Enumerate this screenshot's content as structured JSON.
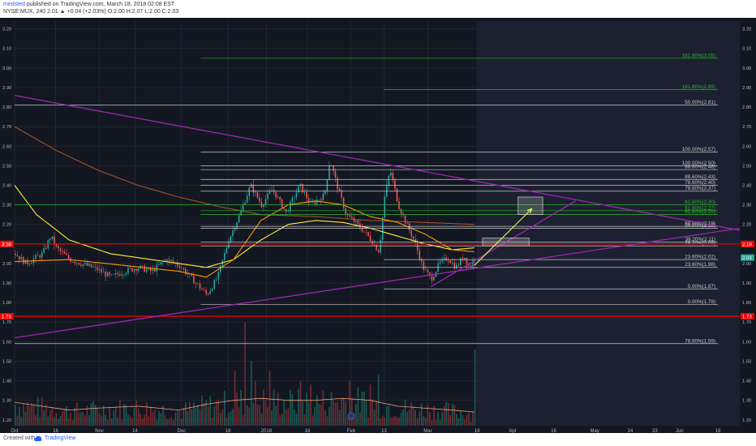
{
  "header": {
    "author": "medsted",
    "published_text": "published on TradingView.com, March 18, 2018 02:08 EST",
    "symbol_line": "NYSE:MUX, 240  2.01  ▲ +0.04 (+2.03%)  O:2.00  H:2.07  L:2.00  C:2.03"
  },
  "footer": {
    "created_with": "Created with",
    "brand": "TradingView",
    "logo_icon": "tradingview-cloud-icon"
  },
  "colors": {
    "background": "#131722",
    "grid": "#2a2e39",
    "up": "#26a69a",
    "down": "#ef5350",
    "fib_gray": "#c8c8c8",
    "fib_green": "#2db52d",
    "trendline": "#9c27b0",
    "sma_yellow": "#ffeb3b",
    "sma_orange": "#ff9800",
    "sma_brown": "#a0522d",
    "horizontal_red": "#ff0000",
    "projection_arrow": "#e6ff3c"
  },
  "chart_data": {
    "type": "candlestick",
    "symbol": "NYSE:MUX",
    "interval": "240",
    "ylim": [
      1.17,
      3.24
    ],
    "y_ticks": [
      "3.20",
      "3.10",
      "3.00",
      "2.90",
      "2.80",
      "2.70",
      "2.60",
      "2.50",
      "2.40",
      "2.30",
      "2.20",
      "2.10",
      "2.00",
      "1.90",
      "1.80",
      "1.70",
      "1.60",
      "1.50",
      "1.40",
      "1.30",
      "1.20"
    ],
    "x_ticks": [
      {
        "label": "Oct",
        "t": 0
      },
      {
        "label": "16",
        "t": 15
      },
      {
        "label": "Nov",
        "t": 31
      },
      {
        "label": "14",
        "t": 44
      },
      {
        "label": "Dec",
        "t": 61
      },
      {
        "label": "18",
        "t": 78
      },
      {
        "label": "2018",
        "t": 92
      },
      {
        "label": "16",
        "t": 107
      },
      {
        "label": "Feb",
        "t": 123
      },
      {
        "label": "13",
        "t": 135
      },
      {
        "label": "Mar",
        "t": 151
      },
      {
        "label": "19",
        "t": 169
      },
      {
        "label": "Apr",
        "t": 182
      },
      {
        "label": "16",
        "t": 197
      },
      {
        "label": "May",
        "t": 212
      },
      {
        "label": "14",
        "t": 225
      },
      {
        "label": "23",
        "t": 234
      },
      {
        "label": "Jun",
        "t": 243
      },
      {
        "label": "18",
        "t": 257
      }
    ],
    "price_anchors": [
      [
        0,
        2.05
      ],
      [
        4,
        2.0
      ],
      [
        10,
        2.05
      ],
      [
        13,
        2.14
      ],
      [
        15,
        2.08
      ],
      [
        20,
        2.02
      ],
      [
        26,
        1.99
      ],
      [
        30,
        1.97
      ],
      [
        35,
        1.93
      ],
      [
        40,
        1.96
      ],
      [
        45,
        1.98
      ],
      [
        50,
        1.96
      ],
      [
        55,
        2.02
      ],
      [
        60,
        1.99
      ],
      [
        66,
        1.9
      ],
      [
        70,
        1.84
      ],
      [
        74,
        1.93
      ],
      [
        78,
        2.12
      ],
      [
        82,
        2.25
      ],
      [
        86,
        2.4
      ],
      [
        90,
        2.3
      ],
      [
        94,
        2.38
      ],
      [
        99,
        2.26
      ],
      [
        104,
        2.4
      ],
      [
        108,
        2.3
      ],
      [
        113,
        2.35
      ],
      [
        115,
        2.53
      ],
      [
        118,
        2.38
      ],
      [
        121,
        2.25
      ],
      [
        125,
        2.2
      ],
      [
        129,
        2.14
      ],
      [
        133,
        2.06
      ],
      [
        135,
        2.34
      ],
      [
        137,
        2.48
      ],
      [
        140,
        2.3
      ],
      [
        143,
        2.2
      ],
      [
        146,
        2.11
      ],
      [
        149,
        1.98
      ],
      [
        152,
        1.92
      ],
      [
        155,
        2.0
      ],
      [
        158,
        2.03
      ],
      [
        161,
        1.98
      ],
      [
        164,
        2.04
      ],
      [
        166,
        1.98
      ],
      [
        168,
        2.03
      ]
    ],
    "sma_50_anchors": [
      [
        0,
        2.01
      ],
      [
        20,
        2.02
      ],
      [
        40,
        1.99
      ],
      [
        60,
        1.96
      ],
      [
        70,
        1.93
      ],
      [
        80,
        2.02
      ],
      [
        90,
        2.22
      ],
      [
        100,
        2.3
      ],
      [
        110,
        2.32
      ],
      [
        120,
        2.3
      ],
      [
        130,
        2.24
      ],
      [
        140,
        2.21
      ],
      [
        150,
        2.15
      ],
      [
        160,
        2.07
      ],
      [
        168,
        2.06
      ]
    ],
    "sma_100_anchors": [
      [
        0,
        2.4
      ],
      [
        8,
        2.25
      ],
      [
        20,
        2.12
      ],
      [
        35,
        2.05
      ],
      [
        50,
        2.02
      ],
      [
        60,
        2.0
      ],
      [
        70,
        1.98
      ],
      [
        80,
        2.02
      ],
      [
        90,
        2.12
      ],
      [
        100,
        2.2
      ],
      [
        110,
        2.22
      ],
      [
        120,
        2.21
      ],
      [
        130,
        2.18
      ],
      [
        140,
        2.14
      ],
      [
        150,
        2.1
      ],
      [
        160,
        2.07
      ],
      [
        168,
        2.08
      ]
    ],
    "sma_200_anchors": [
      [
        0,
        2.7
      ],
      [
        15,
        2.58
      ],
      [
        30,
        2.48
      ],
      [
        45,
        2.4
      ],
      [
        60,
        2.34
      ],
      [
        75,
        2.29
      ],
      [
        90,
        2.25
      ],
      [
        110,
        2.24
      ],
      [
        130,
        2.22
      ],
      [
        150,
        2.21
      ],
      [
        168,
        2.2
      ]
    ],
    "volume_anchors": [
      [
        0,
        1.29
      ],
      [
        10,
        1.27
      ],
      [
        20,
        1.25
      ],
      [
        30,
        1.26
      ],
      [
        45,
        1.27
      ],
      [
        60,
        1.25
      ],
      [
        70,
        1.28
      ],
      [
        80,
        1.3
      ],
      [
        90,
        1.31
      ],
      [
        100,
        1.3
      ],
      [
        110,
        1.3
      ],
      [
        120,
        1.31
      ],
      [
        130,
        1.3
      ],
      [
        140,
        1.27
      ],
      [
        150,
        1.26
      ],
      [
        160,
        1.25
      ],
      [
        168,
        1.24
      ]
    ],
    "volume_spikes": [
      [
        80,
        1.45
      ],
      [
        84,
        1.7
      ],
      [
        86,
        1.5
      ],
      [
        88,
        1.4
      ],
      [
        93,
        1.45
      ],
      [
        104,
        1.4
      ],
      [
        108,
        1.38
      ],
      [
        122,
        1.4
      ],
      [
        130,
        1.38
      ],
      [
        133,
        1.43
      ],
      [
        168,
        1.56
      ]
    ],
    "fib_retracement_1": [
      {
        "text": "100.00%(2.57)",
        "price": 2.57,
        "t0": 68,
        "t1": 257
      },
      {
        "text": "100.00%(2.50)",
        "price": 2.5,
        "t0": 68,
        "t1": 257
      },
      {
        "text": "88.60%(2.48)",
        "price": 2.48,
        "t0": 68,
        "t1": 257
      },
      {
        "text": "88.60%(2.43)",
        "price": 2.43,
        "t0": 68,
        "t1": 257
      },
      {
        "text": "78.60%(2.40)",
        "price": 2.4,
        "t0": 68,
        "t1": 257
      },
      {
        "text": "78.60%(2.37)",
        "price": 2.37,
        "t0": 68,
        "t1": 257
      },
      {
        "text": "50.00%(2.18)",
        "price": 2.18,
        "t0": 68,
        "t1": 257
      },
      {
        "text": "50.00%(2.19)",
        "price": 2.19,
        "t0": 68,
        "t1": 257
      },
      {
        "text": "38.20%(2.11)",
        "price": 2.11,
        "t0": 68,
        "t1": 257
      },
      {
        "text": "38.20%(2.09)",
        "price": 2.09,
        "t0": 68,
        "t1": 257
      },
      {
        "text": "23.60%(2.02)",
        "price": 2.02,
        "t0": 135,
        "t1": 257
      },
      {
        "text": "23.60%(1.98)",
        "price": 1.98,
        "t0": 68,
        "t1": 257
      },
      {
        "text": "0.00%(1.87)",
        "price": 1.87,
        "t0": 135,
        "t1": 257
      },
      {
        "text": "0.00%(1.79)",
        "price": 1.79,
        "t0": 68,
        "t1": 257
      },
      {
        "text": "50.00%(2.81)",
        "price": 2.81,
        "t0": 0,
        "t1": 257
      },
      {
        "text": "78.60%(1.59)",
        "price": 1.59,
        "t0": 0,
        "t1": 257
      }
    ],
    "fib_green_levels": [
      {
        "text": "161.80%(3.05)",
        "price": 3.05,
        "t0": 68,
        "t1": 257
      },
      {
        "text": "161.80%(2.89)",
        "price": 2.89,
        "t0": 135,
        "t1": 257
      },
      {
        "text": "61.80%(2.30)",
        "price": 2.3,
        "t0": 0,
        "t1": 257
      },
      {
        "text": "61.80%(2.27)",
        "price": 2.27,
        "t0": 68,
        "t1": 257
      },
      {
        "text": "61.80%(2.25)",
        "price": 2.25,
        "t0": 68,
        "t1": 257
      }
    ],
    "trendlines": [
      {
        "t0": 0,
        "p0": 2.86,
        "t1": 265,
        "p1": 2.17
      },
      {
        "t0": 0,
        "p0": 1.62,
        "t1": 265,
        "p1": 2.18
      },
      {
        "t0": 152,
        "p0": 1.88,
        "t1": 205,
        "p1": 2.32
      }
    ],
    "horizontal_lines": [
      {
        "price": 1.73,
        "label": "1.73",
        "color": "#ff0000"
      },
      {
        "price": 2.1,
        "label": "2.10",
        "color": "#ff0000"
      }
    ],
    "price_boxes": [
      {
        "t0": 171,
        "t1": 188,
        "p0": 2.09,
        "p1": 2.13
      },
      {
        "t0": 184,
        "t1": 193,
        "p0": 2.25,
        "p1": 2.34
      }
    ],
    "projection_arrow": {
      "t0": 168,
      "p0": 1.99,
      "t1": 189,
      "p1": 2.28
    },
    "last_price": {
      "price": 2.03,
      "label": "2.03"
    }
  }
}
